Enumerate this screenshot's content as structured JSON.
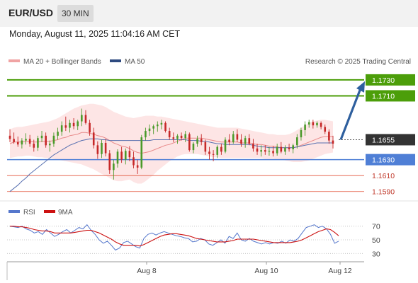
{
  "header": {
    "symbol": "EUR/USD",
    "timeframe": "30 MIN",
    "datetime": "Monday, August 11, 2025 11:04:16 AM CET"
  },
  "legend": {
    "ma20_bb": "MA 20 + Bollinger Bands",
    "ma50": "MA 50",
    "copyright": "Research © 2025 Trading Central"
  },
  "colors": {
    "green_level": "#4c9e0a",
    "support_blue": "#4f7fd6",
    "red_level": "#e2533a",
    "bull_candle": "#4a9a2a",
    "bear_candle": "#c62828",
    "bollinger_fill": "#fde2e2",
    "ma20": "#e88a8a",
    "ma50": "#5870b0",
    "forecast_arrow": "#2e5f9e",
    "rsi": "#5577cc",
    "rsi_ma": "#cc1111",
    "price_badge": "#333333"
  },
  "chart_data": [
    {
      "type": "candlestick",
      "title": "EUR/USD 30 MIN",
      "x_labels": [
        "Aug 8",
        "Aug 10",
        "Aug 12"
      ],
      "current_price": "1.1655",
      "levels": [
        {
          "value": "1.1730",
          "style": "resistance"
        },
        {
          "value": "1.1710",
          "style": "resistance"
        },
        {
          "value": "1.1630",
          "style": "support"
        },
        {
          "value": "1.1610",
          "style": "minor"
        },
        {
          "value": "1.1590",
          "style": "minor"
        }
      ],
      "ylim": [
        1.158,
        1.1745
      ],
      "forecast": {
        "from": 1.1655,
        "to": 1.173,
        "direction": "up"
      },
      "candles": [
        [
          1.166,
          1.1668,
          1.1652,
          1.1656
        ],
        [
          1.1656,
          1.1664,
          1.165,
          1.1652
        ],
        [
          1.1652,
          1.1659,
          1.1646,
          1.1649
        ],
        [
          1.1649,
          1.1657,
          1.1644,
          1.1654
        ],
        [
          1.1654,
          1.1663,
          1.1649,
          1.1656
        ],
        [
          1.1656,
          1.1661,
          1.1646,
          1.165
        ],
        [
          1.165,
          1.1655,
          1.164,
          1.1645
        ],
        [
          1.1645,
          1.166,
          1.1641,
          1.1657
        ],
        [
          1.1657,
          1.1666,
          1.1652,
          1.166
        ],
        [
          1.166,
          1.1664,
          1.1645,
          1.1648
        ],
        [
          1.1648,
          1.1654,
          1.164,
          1.165
        ],
        [
          1.165,
          1.1664,
          1.1646,
          1.166
        ],
        [
          1.166,
          1.167,
          1.1655,
          1.1665
        ],
        [
          1.1665,
          1.1678,
          1.166,
          1.1673
        ],
        [
          1.1673,
          1.1684,
          1.1666,
          1.167
        ],
        [
          1.167,
          1.168,
          1.1664,
          1.1676
        ],
        [
          1.1676,
          1.1682,
          1.1668,
          1.1672
        ],
        [
          1.1672,
          1.168,
          1.1667,
          1.1678
        ],
        [
          1.1678,
          1.1694,
          1.1672,
          1.1686
        ],
        [
          1.1686,
          1.1692,
          1.1674,
          1.1676
        ],
        [
          1.1676,
          1.168,
          1.166,
          1.1664
        ],
        [
          1.1664,
          1.167,
          1.1644,
          1.1648
        ],
        [
          1.1648,
          1.1653,
          1.1631,
          1.1637
        ],
        [
          1.1637,
          1.1655,
          1.1632,
          1.1651
        ],
        [
          1.1651,
          1.1656,
          1.1634,
          1.1638
        ],
        [
          1.1638,
          1.1642,
          1.1612,
          1.1617
        ],
        [
          1.1617,
          1.163,
          1.1605,
          1.1625
        ],
        [
          1.1625,
          1.1643,
          1.162,
          1.164
        ],
        [
          1.164,
          1.1646,
          1.1626,
          1.163
        ],
        [
          1.163,
          1.1644,
          1.1624,
          1.1641
        ],
        [
          1.1641,
          1.1647,
          1.1628,
          1.1633
        ],
        [
          1.1633,
          1.164,
          1.1619,
          1.1623
        ],
        [
          1.1623,
          1.163,
          1.1612,
          1.162
        ],
        [
          1.162,
          1.1661,
          1.1618,
          1.1658
        ],
        [
          1.1658,
          1.167,
          1.1654,
          1.1666
        ],
        [
          1.1666,
          1.1674,
          1.166,
          1.1669
        ],
        [
          1.1669,
          1.1674,
          1.1662,
          1.1672
        ],
        [
          1.1672,
          1.1678,
          1.1665,
          1.1674
        ],
        [
          1.1674,
          1.168,
          1.1668,
          1.1676
        ],
        [
          1.1676,
          1.1678,
          1.1664,
          1.1666
        ],
        [
          1.1666,
          1.167,
          1.1655,
          1.1658
        ],
        [
          1.1658,
          1.1664,
          1.1652,
          1.1656
        ],
        [
          1.1656,
          1.1662,
          1.165,
          1.166
        ],
        [
          1.166,
          1.1664,
          1.1654,
          1.1657
        ],
        [
          1.1657,
          1.1666,
          1.1652,
          1.1662
        ],
        [
          1.1662,
          1.1664,
          1.164,
          1.1642
        ],
        [
          1.1642,
          1.1652,
          1.1638,
          1.165
        ],
        [
          1.165,
          1.166,
          1.1646,
          1.1656
        ],
        [
          1.1656,
          1.1662,
          1.1648,
          1.1652
        ],
        [
          1.1652,
          1.1655,
          1.1636,
          1.164
        ],
        [
          1.164,
          1.1646,
          1.163,
          1.1637
        ],
        [
          1.1637,
          1.1642,
          1.1628,
          1.1636
        ],
        [
          1.1636,
          1.1648,
          1.1632,
          1.1646
        ],
        [
          1.1646,
          1.165,
          1.1636,
          1.164
        ],
        [
          1.164,
          1.1658,
          1.1638,
          1.1655
        ],
        [
          1.1655,
          1.1662,
          1.1648,
          1.1652
        ],
        [
          1.1652,
          1.1666,
          1.165,
          1.1662
        ],
        [
          1.1662,
          1.1668,
          1.1652,
          1.1655
        ],
        [
          1.1655,
          1.1662,
          1.1646,
          1.165
        ],
        [
          1.165,
          1.166,
          1.1645,
          1.1657
        ],
        [
          1.1657,
          1.1662,
          1.1648,
          1.165
        ],
        [
          1.165,
          1.1656,
          1.164,
          1.1644
        ],
        [
          1.1644,
          1.165,
          1.1636,
          1.164
        ],
        [
          1.164,
          1.1648,
          1.1634,
          1.1642
        ],
        [
          1.1642,
          1.1648,
          1.1636,
          1.164
        ],
        [
          1.164,
          1.1646,
          1.1635,
          1.1641
        ],
        [
          1.1641,
          1.1647,
          1.1634,
          1.1638
        ],
        [
          1.1638,
          1.165,
          1.1635,
          1.1646
        ],
        [
          1.1646,
          1.1652,
          1.1638,
          1.164
        ],
        [
          1.164,
          1.1648,
          1.1636,
          1.1645
        ],
        [
          1.1645,
          1.165,
          1.164,
          1.1643
        ],
        [
          1.1643,
          1.165,
          1.1638,
          1.1648
        ],
        [
          1.1648,
          1.1662,
          1.1644,
          1.1658
        ],
        [
          1.1658,
          1.167,
          1.1654,
          1.1667
        ],
        [
          1.1667,
          1.1678,
          1.166,
          1.1674
        ],
        [
          1.1674,
          1.168,
          1.167,
          1.1677
        ],
        [
          1.1677,
          1.168,
          1.1669,
          1.1673
        ],
        [
          1.1673,
          1.1678,
          1.167,
          1.1676
        ],
        [
          1.1676,
          1.1678,
          1.1668,
          1.1671
        ],
        [
          1.1671,
          1.1674,
          1.1662,
          1.1665
        ],
        [
          1.1665,
          1.1668,
          1.165,
          1.1654
        ],
        [
          1.1654,
          1.166,
          1.1644,
          1.165
        ]
      ],
      "ma50": [
        1.159,
        1.1594,
        1.1598,
        1.1603,
        1.1607,
        1.1612,
        1.1616,
        1.162,
        1.1624,
        1.1628,
        1.1632,
        1.1636,
        1.1639,
        1.1642,
        1.1645,
        1.1648,
        1.165,
        1.1652,
        1.1654,
        1.1655,
        1.1656,
        1.1656,
        1.1656,
        1.1655,
        1.1655,
        1.1654,
        1.1654,
        1.1654,
        1.1654,
        1.1654,
        1.1654,
        1.1654,
        1.1654,
        1.1654,
        1.1654,
        1.1654,
        1.1655,
        1.1655,
        1.1655,
        1.1655,
        1.1655,
        1.1655,
        1.1655,
        1.1655,
        1.1655,
        1.1654,
        1.1654,
        1.1654,
        1.1653,
        1.1653,
        1.1652,
        1.1651,
        1.165,
        1.165,
        1.1649,
        1.1649,
        1.1649,
        1.1649,
        1.1649,
        1.1649,
        1.1649,
        1.1648,
        1.1647,
        1.1646,
        1.1646,
        1.1645,
        1.1645,
        1.1645,
        1.1645,
        1.1645,
        1.1645,
        1.1645,
        1.1646,
        1.1647,
        1.1648,
        1.1649,
        1.165,
        1.1651,
        1.1651,
        1.1651,
        1.1651,
        1.1651
      ],
      "ma20": [
        1.165,
        1.1652,
        1.1652,
        1.1652,
        1.1653,
        1.1653,
        1.1652,
        1.1652,
        1.1653,
        1.1653,
        1.1653,
        1.1654,
        1.1655,
        1.1657,
        1.1658,
        1.166,
        1.1661,
        1.1662,
        1.1664,
        1.1664,
        1.1663,
        1.1662,
        1.166,
        1.1659,
        1.1657,
        1.1654,
        1.1651,
        1.1649,
        1.1647,
        1.1646,
        1.1644,
        1.1641,
        1.1639,
        1.1638,
        1.1639,
        1.164,
        1.1642,
        1.1644,
        1.1646,
        1.1648,
        1.1649,
        1.1651,
        1.1653,
        1.1655,
        1.1657,
        1.1657,
        1.1657,
        1.1657,
        1.1657,
        1.1656,
        1.1655,
        1.1654,
        1.1653,
        1.1652,
        1.1652,
        1.1652,
        1.1652,
        1.1652,
        1.1651,
        1.1651,
        1.1651,
        1.165,
        1.1649,
        1.1649,
        1.1648,
        1.1647,
        1.1647,
        1.1646,
        1.1645,
        1.1645,
        1.1645,
        1.1645,
        1.1646,
        1.1648,
        1.165,
        1.1652,
        1.1654,
        1.1656,
        1.1658,
        1.1659,
        1.1659,
        1.1659
      ],
      "bb_upper": [
        1.1668,
        1.167,
        1.1671,
        1.1671,
        1.1672,
        1.1673,
        1.1674,
        1.1675,
        1.1676,
        1.1677,
        1.1678,
        1.168,
        1.1682,
        1.1685,
        1.1688,
        1.1691,
        1.1694,
        1.1696,
        1.1698,
        1.1699,
        1.17,
        1.17,
        1.1699,
        1.1698,
        1.1696,
        1.1693,
        1.169,
        1.1688,
        1.1686,
        1.1684,
        1.1683,
        1.1682,
        1.1683,
        1.1684,
        1.1685,
        1.1685,
        1.1685,
        1.1684,
        1.1684,
        1.1683,
        1.1682,
        1.1681,
        1.168,
        1.1679,
        1.1678,
        1.1677,
        1.1676,
        1.1675,
        1.1674,
        1.1673,
        1.1672,
        1.1671,
        1.167,
        1.167,
        1.167,
        1.167,
        1.167,
        1.167,
        1.1669,
        1.1668,
        1.1667,
        1.1666,
        1.1665,
        1.1664,
        1.1663,
        1.1662,
        1.1662,
        1.1661,
        1.1661,
        1.1661,
        1.1662,
        1.1664,
        1.1667,
        1.167,
        1.1673,
        1.1676,
        1.1678,
        1.1679,
        1.168,
        1.168,
        1.1679,
        1.1678
      ],
      "bb_lower": [
        1.1632,
        1.1633,
        1.1634,
        1.1634,
        1.1635,
        1.1635,
        1.1634,
        1.1633,
        1.1633,
        1.1632,
        1.1632,
        1.1631,
        1.163,
        1.1629,
        1.1628,
        1.1627,
        1.1626,
        1.1625,
        1.1624,
        1.1622,
        1.162,
        1.1618,
        1.1615,
        1.1612,
        1.161,
        1.1607,
        1.1604,
        1.1603,
        1.1603,
        1.1604,
        1.1605,
        1.1602,
        1.16,
        1.16,
        1.1603,
        1.1607,
        1.1611,
        1.1616,
        1.162,
        1.1624,
        1.1628,
        1.1631,
        1.1634,
        1.1636,
        1.1637,
        1.1637,
        1.1637,
        1.1637,
        1.1636,
        1.1635,
        1.1634,
        1.1633,
        1.1633,
        1.1632,
        1.1632,
        1.1632,
        1.1632,
        1.1632,
        1.1632,
        1.1632,
        1.1632,
        1.1632,
        1.1632,
        1.1632,
        1.1631,
        1.1631,
        1.1631,
        1.163,
        1.163,
        1.1629,
        1.1628,
        1.1627,
        1.1627,
        1.1627,
        1.1628,
        1.1629,
        1.1631,
        1.1633,
        1.1635,
        1.1637,
        1.1638,
        1.1639
      ]
    },
    {
      "type": "line",
      "title": "RSI",
      "series": [
        {
          "name": "RSI",
          "values": [
            70,
            69,
            68,
            70,
            66,
            64,
            60,
            62,
            58,
            65,
            60,
            55,
            58,
            62,
            65,
            60,
            64,
            68,
            66,
            72,
            64,
            58,
            50,
            45,
            48,
            42,
            35,
            38,
            46,
            48,
            44,
            40,
            38,
            52,
            58,
            60,
            57,
            60,
            62,
            60,
            58,
            56,
            55,
            53,
            52,
            47,
            48,
            52,
            50,
            44,
            42,
            46,
            50,
            45,
            55,
            52,
            60,
            50,
            48,
            52,
            48,
            46,
            44,
            46,
            44,
            46,
            45,
            48,
            45,
            50,
            48,
            52,
            60,
            68,
            70,
            72,
            68,
            70,
            66,
            58,
            45,
            48
          ]
        },
        {
          "name": "9MA",
          "values": [
            70,
            70,
            69,
            69,
            68,
            67,
            65,
            64,
            63,
            63,
            62,
            60,
            60,
            60,
            60,
            60,
            61,
            62,
            63,
            64,
            64,
            62,
            60,
            57,
            54,
            51,
            47,
            44,
            42,
            42,
            42,
            42,
            41,
            43,
            46,
            49,
            52,
            55,
            57,
            58,
            59,
            59,
            58,
            57,
            56,
            54,
            52,
            51,
            50,
            49,
            48,
            47,
            47,
            47,
            48,
            49,
            51,
            51,
            51,
            51,
            51,
            50,
            49,
            48,
            47,
            46,
            46,
            46,
            46,
            46,
            47,
            48,
            50,
            53,
            56,
            59,
            62,
            64,
            66,
            65,
            61,
            56
          ]
        }
      ],
      "yticks": [
        30,
        50,
        70
      ],
      "ylim": [
        20,
        80
      ]
    }
  ]
}
